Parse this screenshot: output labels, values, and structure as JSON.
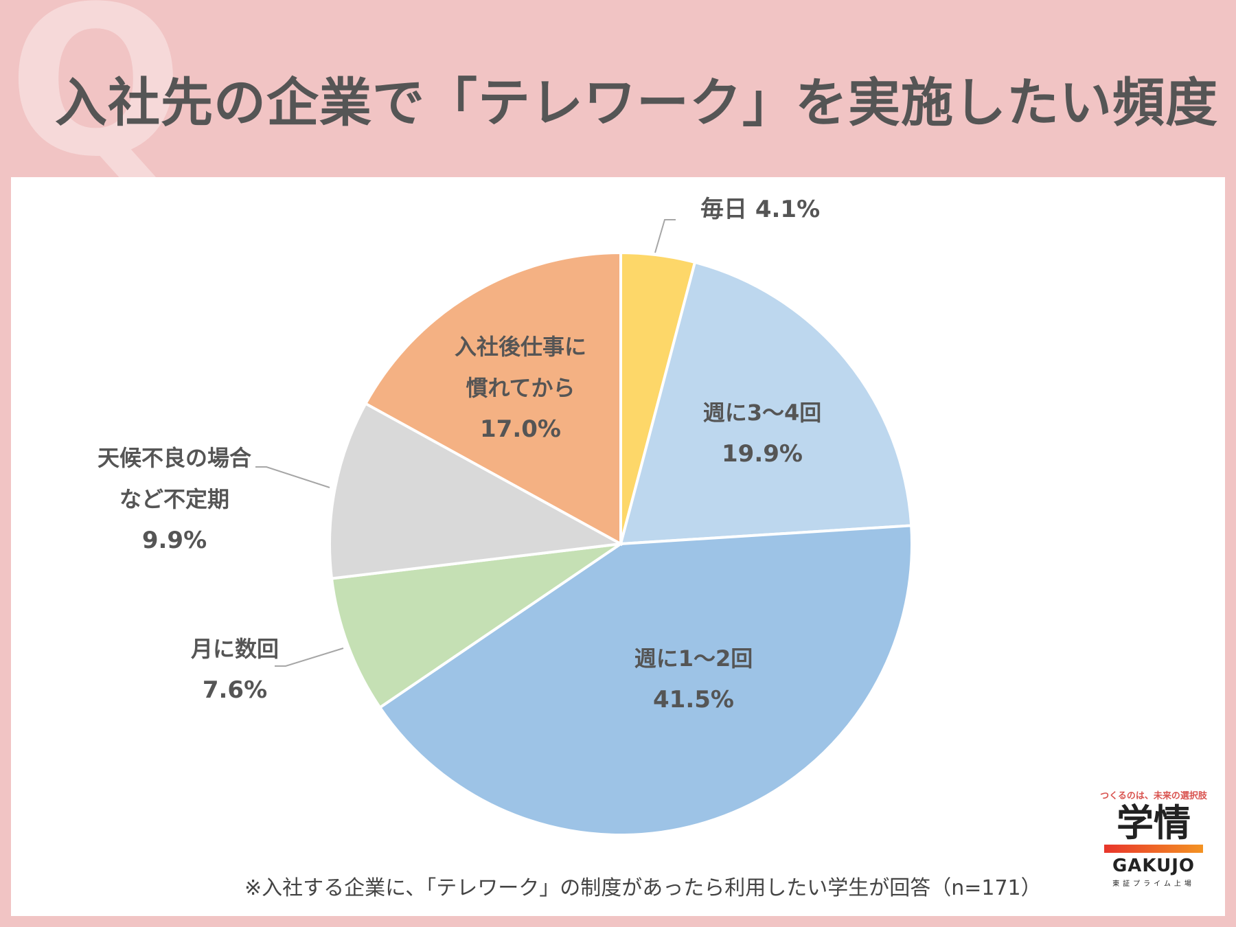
{
  "header": {
    "decor_letter": "Q",
    "title": "入社先の企業で「テレワーク」を実施したい頻度"
  },
  "chart_data": {
    "type": "pie",
    "title": "入社先の企業で「テレワーク」を実施したい頻度",
    "slices": [
      {
        "label": "毎日",
        "value": 4.1,
        "display": "4.1%",
        "color": "#fdd769"
      },
      {
        "label": "週に3～4回",
        "value": 19.9,
        "display": "19.9%",
        "color": "#bdd7ee"
      },
      {
        "label": "週に1～2回",
        "value": 41.5,
        "display": "41.5%",
        "color": "#9dc3e6"
      },
      {
        "label": "月に数回",
        "value": 7.6,
        "display": "7.6%",
        "color": "#c5e0b4"
      },
      {
        "label": "天候不良の場合など不定期",
        "value": 9.9,
        "display": "9.9%",
        "color": "#d9d9d9"
      },
      {
        "label": "入社後仕事に慣れてから",
        "value": 17.0,
        "display": "17.0%",
        "color": "#f4b183"
      }
    ],
    "start": "top",
    "direction": "clockwise"
  },
  "labels": {
    "daily": "毎日 4.1%",
    "w34_line1": "週に3～4回",
    "w34_line2": "19.9%",
    "w12_line1": "週に1～2回",
    "w12_line2": "41.5%",
    "monthly_line1": "月に数回",
    "monthly_line2": "7.6%",
    "irregular_line1": "天候不良の場合",
    "irregular_line2": "など不定期",
    "irregular_line3": "9.9%",
    "after_line1": "入社後仕事に",
    "after_line2": "慣れてから",
    "after_line3": "17.0%"
  },
  "footnote": "※入社する企業に、「テレワーク」の制度があったら利用したい学生が回答（n=171）",
  "logo": {
    "tagline": "つくるのは、未来の選択肢",
    "kanji": "学情",
    "roman": "GAKUJO",
    "sub": "東証プライム上場"
  }
}
